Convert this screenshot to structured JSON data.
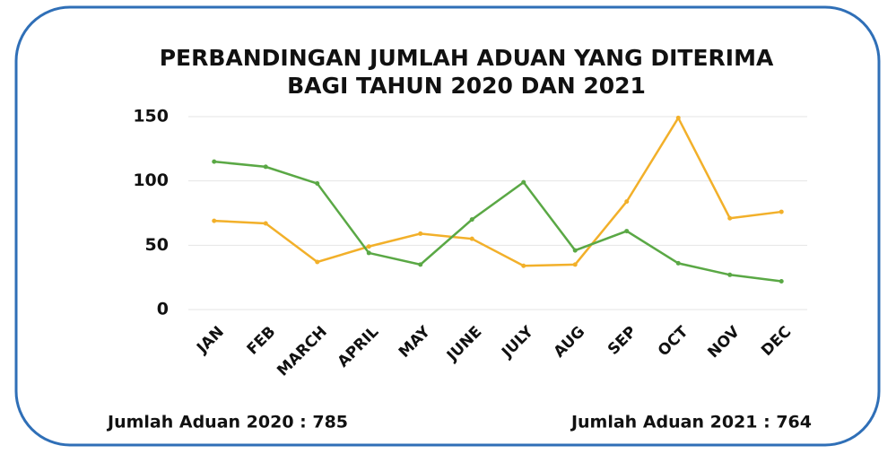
{
  "chart_data": {
    "type": "line",
    "title": [
      "PERBANDINGAN JUMLAH ADUAN YANG DITERIMA",
      "BAGI TAHUN 2020 DAN 2021"
    ],
    "categories": [
      "JAN",
      "FEB",
      "MARCH",
      "APRIL",
      "MAY",
      "JUNE",
      "JULY",
      "AUG",
      "SEP",
      "OCT",
      "NOV",
      "DEC"
    ],
    "series": [
      {
        "color": "#f2b02a",
        "values": [
          69,
          67,
          37,
          49,
          59,
          55,
          34,
          35,
          84,
          149,
          71,
          76
        ]
      },
      {
        "color": "#5aa845",
        "values": [
          115,
          111,
          98,
          44,
          35,
          70,
          99,
          46,
          61,
          36,
          27,
          22
        ]
      }
    ],
    "ylim": [
      0,
      150
    ],
    "yticks": [
      0,
      50,
      100,
      150
    ],
    "grid": true,
    "annotations": [
      "Jumlah Aduan 2020 : 785",
      "Jumlah Aduan 2021 : 764"
    ]
  }
}
